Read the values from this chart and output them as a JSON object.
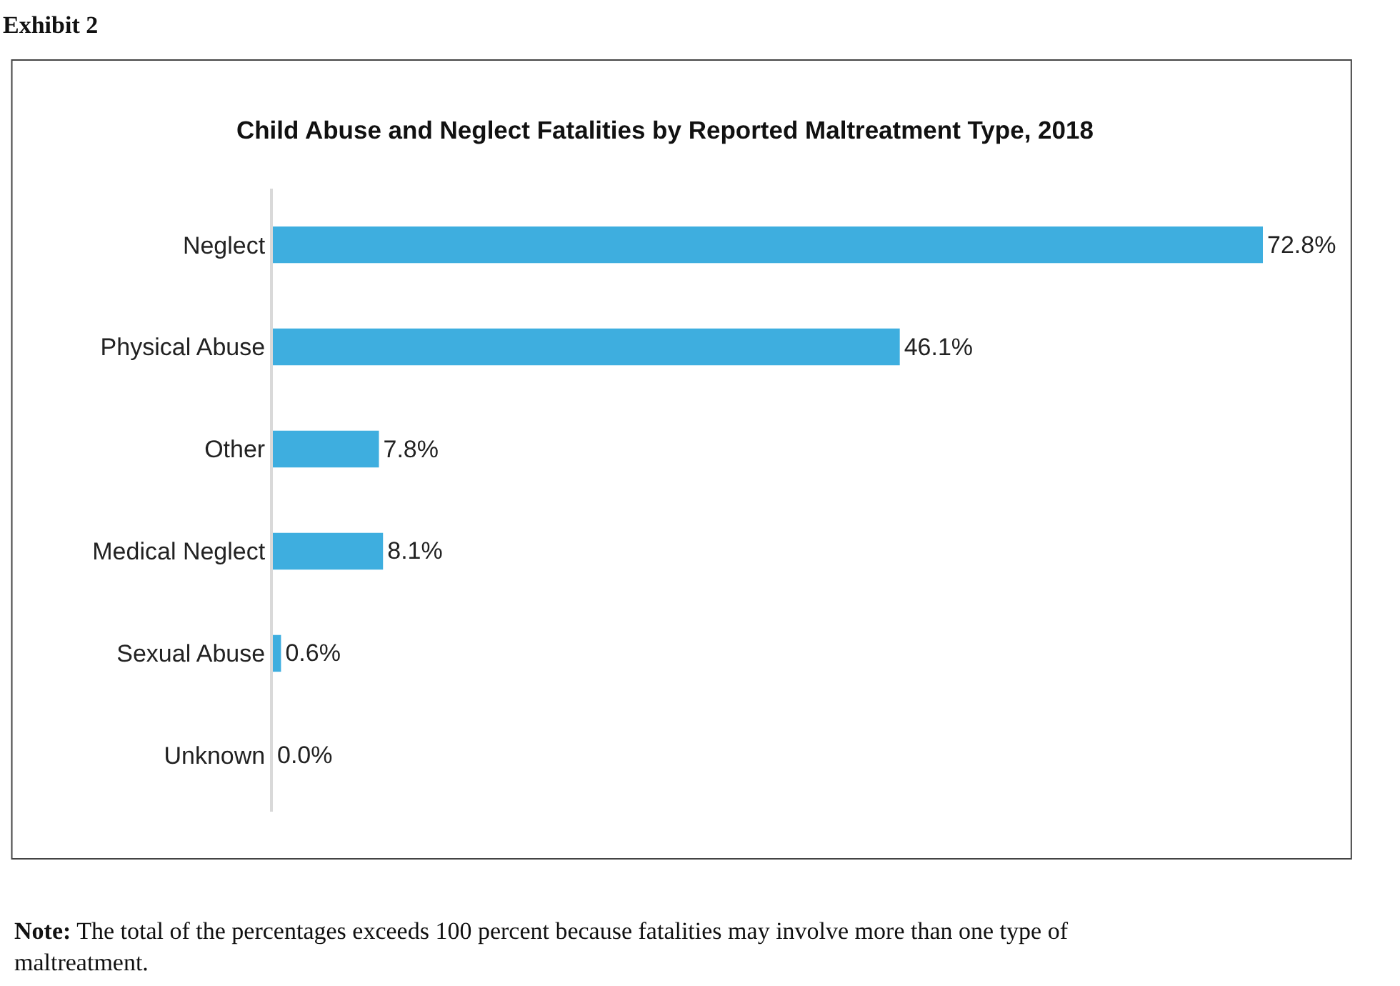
{
  "chart_data": {
    "type": "bar",
    "orientation": "horizontal",
    "title": "Child Abuse and Neglect Fatalities by Reported Maltreatment Type, 2018",
    "categories": [
      "Neglect",
      "Physical Abuse",
      "Other",
      "Medical Neglect",
      "Sexual Abuse",
      "Unknown"
    ],
    "values": [
      72.8,
      46.1,
      7.8,
      8.1,
      0.6,
      0.0
    ],
    "value_labels": [
      "72.8%",
      "46.1%",
      "7.8%",
      "8.1%",
      "0.6%",
      "0.0%"
    ],
    "color": "#3eaedf",
    "annotations": [
      "Exhibit 2",
      "Note: The total of the percentages exceeds 100 percent because fatalities may involve more than one type of maltreatment."
    ],
    "legend": false
  }
}
